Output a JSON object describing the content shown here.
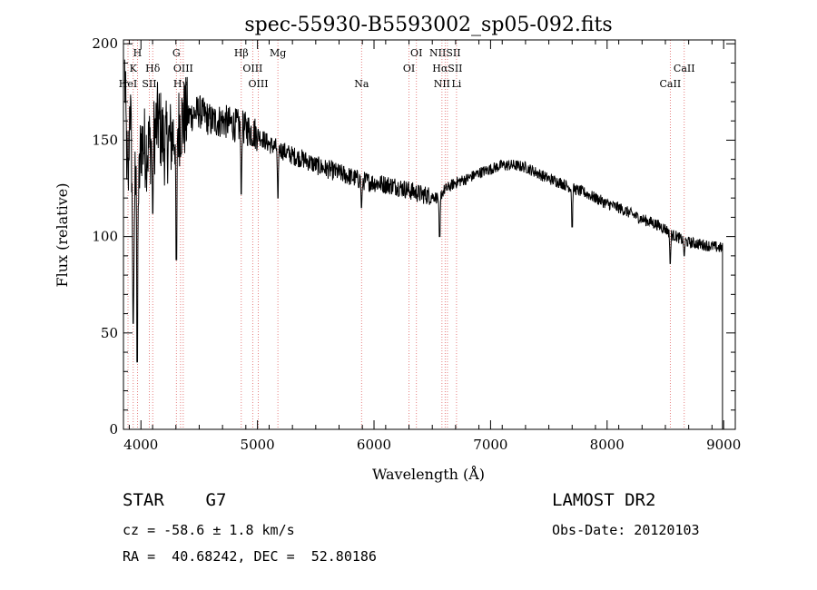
{
  "chart_data": {
    "type": "line",
    "title": "spec-55930-B5593002_sp05-092.fits",
    "xlabel": "Wavelength (Å)",
    "ylabel": "Flux (relative)",
    "xlim": [
      3850,
      9100
    ],
    "ylim": [
      0,
      202
    ],
    "x_ticks": [
      4000,
      5000,
      6000,
      7000,
      8000,
      9000
    ],
    "y_ticks": [
      0,
      50,
      100,
      150,
      200
    ],
    "grid": false,
    "series": [
      {
        "x": [
          3860,
          3875,
          3890,
          3905,
          3920,
          3935,
          3950,
          3965,
          3980,
          4000,
          4050,
          4100,
          4150,
          4200,
          4250,
          4300,
          4350,
          4400,
          4500,
          4600,
          4700,
          4800,
          4900,
          5000,
          5100,
          5200,
          5300,
          5400,
          5500,
          5600,
          5700,
          5800,
          5900,
          6000,
          6100,
          6200,
          6300,
          6400,
          6500,
          6560,
          6600,
          6700,
          6800,
          6900,
          7000,
          7100,
          7200,
          7300,
          7400,
          7500,
          7600,
          7700,
          7800,
          7900,
          8000,
          8100,
          8200,
          8300,
          8400,
          8500,
          8550,
          8600,
          8650,
          8700,
          8800,
          8900,
          8990
        ],
        "y": [
          185,
          150,
          120,
          175,
          140,
          85,
          130,
          160,
          120,
          150,
          145,
          150,
          160,
          148,
          150,
          155,
          160,
          162,
          165,
          160,
          160,
          158,
          156,
          153,
          148,
          145,
          142,
          140,
          137,
          135,
          133,
          131,
          129,
          128,
          127,
          126,
          124,
          122,
          121,
          120,
          124,
          128,
          130,
          133,
          135,
          137,
          137,
          136,
          133,
          130,
          128,
          125,
          123,
          120,
          117,
          115,
          112,
          109,
          107,
          104,
          101,
          100,
          98,
          97,
          96,
          95,
          94
        ]
      }
    ],
    "absorption_features": [
      {
        "x": 3934,
        "y": 55
      },
      {
        "x": 3968,
        "y": 35
      },
      {
        "x": 4101,
        "y": 112
      },
      {
        "x": 4304,
        "y": 88
      },
      {
        "x": 4861,
        "y": 122
      },
      {
        "x": 5175,
        "y": 120
      },
      {
        "x": 5893,
        "y": 115
      },
      {
        "x": 6563,
        "y": 100
      },
      {
        "x": 7700,
        "y": 105
      },
      {
        "x": 8542,
        "y": 86
      },
      {
        "x": 8662,
        "y": 90
      }
    ],
    "line_markers": [
      {
        "label": "H",
        "x": 3970,
        "row": 0
      },
      {
        "label": "K",
        "x": 3934,
        "row": 1
      },
      {
        "label": "Hδ",
        "x": 4101,
        "row": 1
      },
      {
        "label": "HeI",
        "x": 3889,
        "row": 2
      },
      {
        "label": "SII",
        "x": 4072,
        "row": 2
      },
      {
        "label": "G",
        "x": 4304,
        "row": 0
      },
      {
        "label": "OIII",
        "x": 4363,
        "row": 1
      },
      {
        "label": "Hγ",
        "x": 4340,
        "row": 2
      },
      {
        "label": "Hβ",
        "x": 4861,
        "row": 0
      },
      {
        "label": "OIII",
        "x": 4959,
        "row": 1
      },
      {
        "label": "OIII",
        "x": 5007,
        "row": 2
      },
      {
        "label": "Mg",
        "x": 5175,
        "row": 0
      },
      {
        "label": "Na",
        "x": 5893,
        "row": 2
      },
      {
        "label": "OI",
        "x": 6364,
        "row": 0
      },
      {
        "label": "OI",
        "x": 6300,
        "row": 1
      },
      {
        "label": "NIISII",
        "x": 6610,
        "row": 0
      },
      {
        "label": "HαSII",
        "x": 6630,
        "row": 1
      },
      {
        "label": "NII",
        "x": 6583,
        "row": 2
      },
      {
        "label": "Li",
        "x": 6708,
        "row": 2
      },
      {
        "label": "CaII",
        "x": 8662,
        "row": 1
      },
      {
        "label": "CaII",
        "x": 8542,
        "row": 2
      }
    ]
  },
  "info": {
    "object_class": "STAR    G7",
    "survey": "LAMOST DR2",
    "redshift": "cz = -58.6 ± 1.8 km/s",
    "obs_date": "Obs-Date: 20120103",
    "coords": "RA =  40.68242, DEC =  52.80186"
  },
  "colors": {
    "spectrum": "#000000",
    "marker_lines": "#e06060",
    "axes": "#000000"
  }
}
